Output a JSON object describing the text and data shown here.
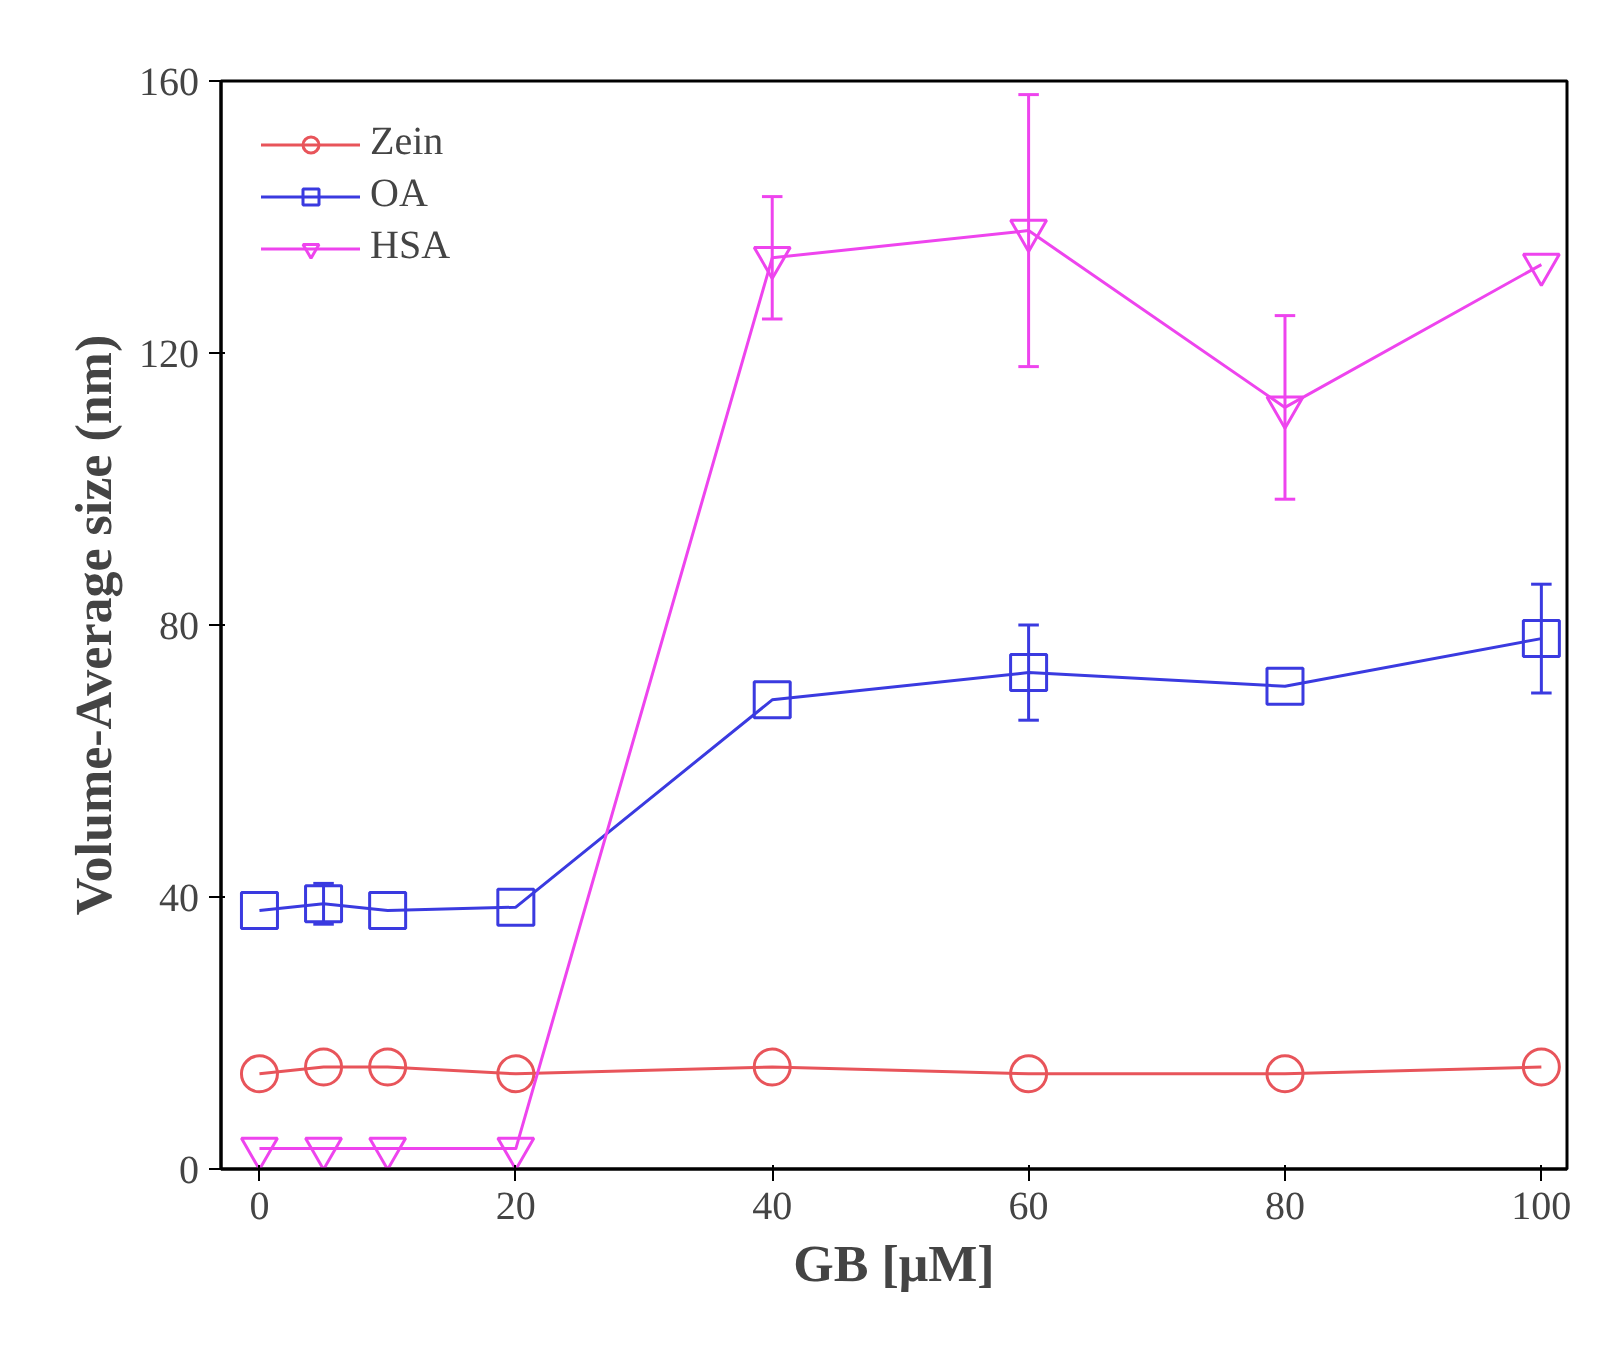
{
  "chart_data": {
    "type": "line",
    "xlabel": "GB [μM]",
    "ylabel": "Volume-Average size (nm)",
    "x": [
      0,
      5,
      10,
      20,
      40,
      60,
      80,
      100
    ],
    "xlim": [
      -3,
      102
    ],
    "ylim": [
      0,
      160
    ],
    "xticks": [
      0,
      20,
      40,
      60,
      80,
      100
    ],
    "yticks": [
      0,
      40,
      80,
      120,
      160
    ],
    "grid": false,
    "legend": "top left",
    "series": [
      {
        "name": "Zein",
        "color": "#e8545a",
        "marker": "circle",
        "values": [
          14,
          15,
          15,
          14,
          15,
          14,
          14,
          15
        ]
      },
      {
        "name": "OA",
        "color": "#3a3ae0",
        "marker": "square",
        "values": [
          38,
          39,
          38,
          38.5,
          69,
          73,
          71,
          78
        ],
        "errors": [
          null,
          3,
          null,
          null,
          null,
          7,
          null,
          8
        ]
      },
      {
        "name": "HSA",
        "color": "#ee44ee",
        "marker": "triangle",
        "values": [
          3,
          3,
          3,
          3,
          134,
          138,
          112,
          133
        ],
        "errors": [
          null,
          null,
          null,
          null,
          9,
          20,
          13.5,
          null
        ]
      }
    ]
  }
}
